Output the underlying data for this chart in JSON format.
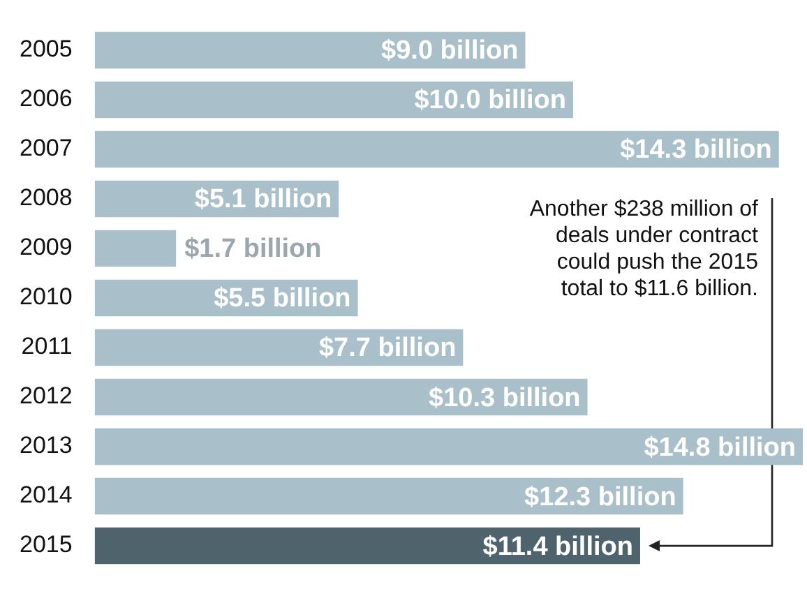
{
  "chart_data": {
    "type": "bar",
    "orientation": "horizontal",
    "tick_labels": "y",
    "categories": [
      "2005",
      "2006",
      "2007",
      "2008",
      "2009",
      "2010",
      "2011",
      "2012",
      "2013",
      "2014",
      "2015"
    ],
    "values": [
      9.0,
      10.0,
      14.3,
      5.1,
      1.7,
      5.5,
      7.7,
      10.3,
      14.8,
      12.3,
      11.4
    ],
    "colors": [
      "#a9c0ca",
      "#a9c0ca",
      "#a9c0ca",
      "#a9c0ca",
      "#a9c0ca",
      "#a9c0ca",
      "#a9c0ca",
      "#a9c0ca",
      "#a9c0ca",
      "#a9c0ca",
      "#4e636c"
    ],
    "value_labels": [
      "$9.0 billion",
      "$10.0 billion",
      "$14.3 billion",
      "$5.1 billion",
      "$1.7 billion",
      "$5.5 billion",
      "$7.7 billion",
      "$10.3 billion",
      "$14.8 billion",
      "$12.3 billion",
      "$11.4 billion"
    ],
    "annotations": [
      "Another $238 million of deals under contract could push the 2015 total to $11.6 billion."
    ]
  }
}
